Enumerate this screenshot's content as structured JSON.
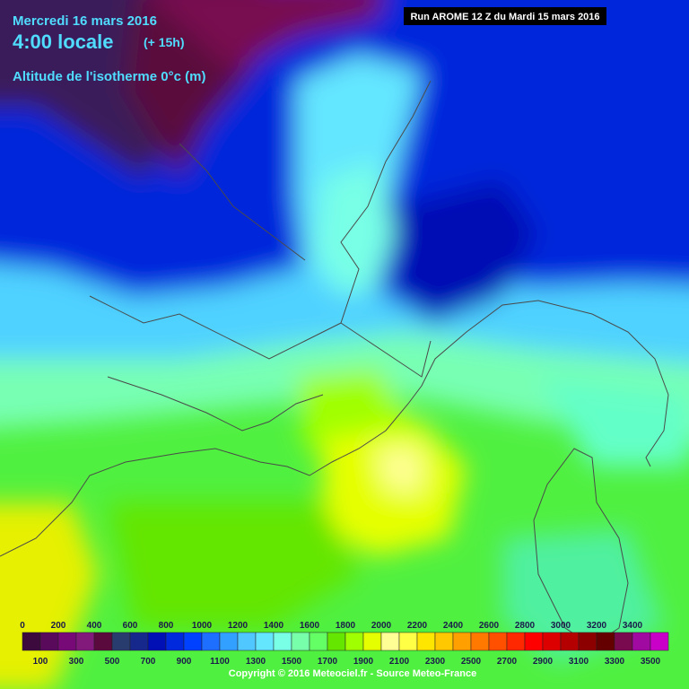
{
  "header": {
    "date": "Mercredi 16 mars 2016",
    "time": "4:00 locale",
    "lead": "(+ 15h)",
    "field": "Altitude de l'isotherme 0°c (m)",
    "run": "Run AROME 12 Z du Mardi 15 mars 2016"
  },
  "legend": {
    "labels": [
      0,
      100,
      200,
      300,
      400,
      500,
      600,
      700,
      800,
      900,
      1000,
      1100,
      1200,
      1300,
      1400,
      1500,
      1600,
      1700,
      1800,
      1900,
      2000,
      2100,
      2200,
      2300,
      2400,
      2500,
      2600,
      2700,
      2800,
      2900,
      3000,
      3100,
      3200,
      3300,
      3400,
      3500
    ],
    "colors": [
      "#3c0a3c",
      "#5a0a5a",
      "#780a78",
      "#821a7c",
      "#5a0a3c",
      "#283c6e",
      "#16288c",
      "#0010b4",
      "#0028dc",
      "#0040ff",
      "#1e6eff",
      "#32a0ff",
      "#50c8ff",
      "#64e6ff",
      "#78ffe6",
      "#78ffaa",
      "#64ff64",
      "#64e600",
      "#a0ff00",
      "#e6ff00",
      "#ffff96",
      "#ffff46",
      "#ffe600",
      "#ffc800",
      "#ffa000",
      "#ff7800",
      "#ff5000",
      "#ff2800",
      "#ff0000",
      "#dc0000",
      "#b40000",
      "#8c0000",
      "#640000",
      "#7a0a50",
      "#a00aa0",
      "#c800c8"
    ]
  },
  "footer": {
    "copyright": "Copyright © 2016 Meteociel.fr - Source Meteo-France"
  }
}
